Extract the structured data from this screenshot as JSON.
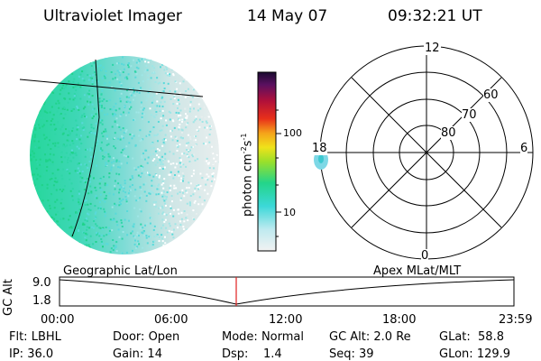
{
  "header": {
    "instrument": "Ultraviolet Imager",
    "date": "14 May 07",
    "time": "09:32:21 UT"
  },
  "colorbar": {
    "label_main": "photon cm",
    "label_exp1": "-2",
    "label_mid": "s",
    "label_exp2": "-1",
    "ticks": [
      "100",
      "10"
    ]
  },
  "polar": {
    "mlt_labels": {
      "top": "12",
      "left": "18",
      "right": "6",
      "bottom": "0"
    },
    "lat_labels": [
      "60",
      "70",
      "80"
    ]
  },
  "timeline": {
    "left_title": "Geographic Lat/Lon",
    "right_title": "Apex MLat/MLT",
    "axis_label": "GC Alt",
    "y_top": "9.0",
    "y_bottom": "1.8",
    "x_ticks": [
      "00:00",
      "06:00",
      "12:00",
      "18:00",
      "23:59"
    ]
  },
  "info": {
    "filter_label": "Flt:",
    "filter_value": "LBHL",
    "ip_label": "IP:",
    "ip_value": "36.0",
    "door_label": "Door:",
    "door_value": "Open",
    "gain_label": "Gain:",
    "gain_value": "14",
    "mode_label": "Mode:",
    "mode_value": "Normal",
    "dsp_label": "Dsp:",
    "dsp_value": "1.4",
    "gcalt_label": "GC Alt:",
    "gcalt_value": "2.0 Re",
    "seq_label": "Seq:",
    "seq_value": "39",
    "glat_label": "GLat:",
    "glat_value": "58.8",
    "glon_label": "GLon:",
    "glon_value": "129.9"
  },
  "colors": {
    "primary_emission": "#22d08a",
    "secondary_emission": "#4fd8d8",
    "faint": "#dfe8ea",
    "marker": "#e02020"
  }
}
